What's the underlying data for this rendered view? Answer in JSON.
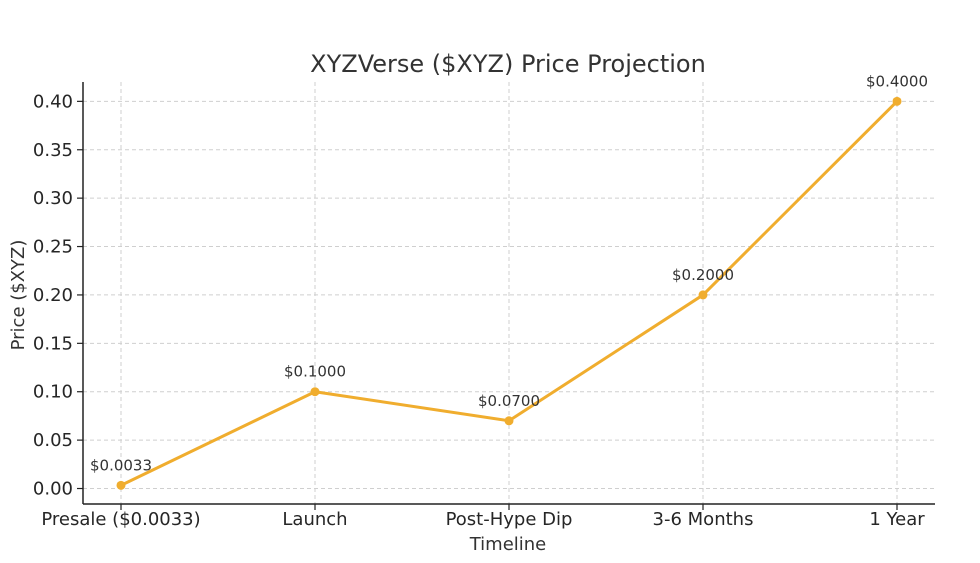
{
  "chart_data": {
    "type": "line",
    "title": "XYZVerse ($XYZ) Price Projection",
    "xlabel": "Timeline",
    "ylabel": "Price ($XYZ)",
    "categories": [
      "Presale ($0.0033)",
      "Launch",
      "Post-Hype Dip",
      "3-6 Months",
      "1 Year"
    ],
    "series": [
      {
        "values": [
          0.0033,
          0.1,
          0.07,
          0.2,
          0.4
        ],
        "labels": [
          "$0.0033",
          "$0.1000",
          "$0.0700",
          "$0.2000",
          "$0.4000"
        ],
        "color": "#f0ad2e"
      }
    ],
    "yticks": [
      "0.00",
      "0.05",
      "0.10",
      "0.15",
      "0.20",
      "0.25",
      "0.30",
      "0.35",
      "0.40"
    ],
    "ylim": [
      -0.016,
      0.42
    ],
    "grid": true
  }
}
